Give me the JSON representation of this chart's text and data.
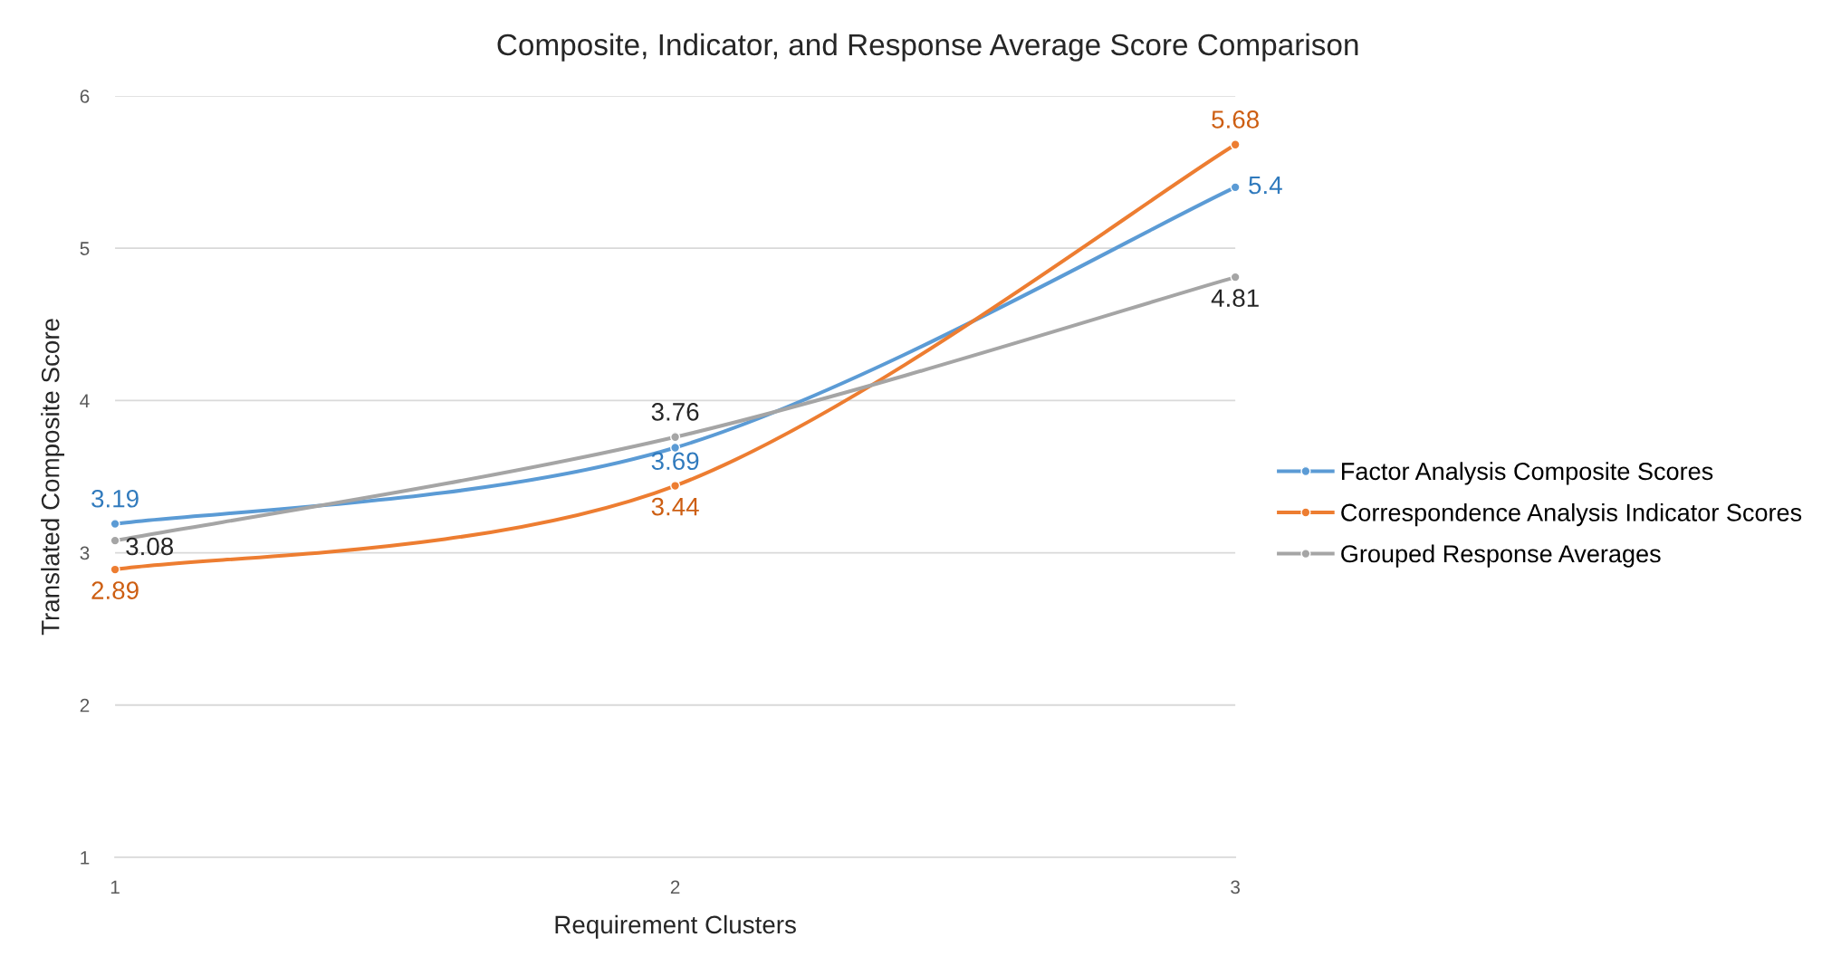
{
  "chart_data": {
    "type": "line",
    "title": "Composite, Indicator, and Response Average Score Comparison",
    "xlabel": "Requirement Clusters",
    "ylabel": "Translated Composite Score",
    "categories": [
      "1",
      "2",
      "3"
    ],
    "series": [
      {
        "name": "Factor Analysis Composite Scores",
        "color": "#5b9bd5",
        "values": [
          3.19,
          3.69,
          5.4
        ]
      },
      {
        "name": "Correspondence Analysis Indicator Scores",
        "color": "#ed7d31",
        "values": [
          2.89,
          3.44,
          5.68
        ]
      },
      {
        "name": "Grouped Response Averages",
        "color": "#a5a5a5",
        "values": [
          3.08,
          3.76,
          4.81
        ]
      }
    ],
    "ylim": [
      1,
      6
    ],
    "yticks": [
      1,
      2,
      3,
      4,
      5,
      6
    ],
    "grid": "y",
    "legend": "right",
    "marker": "circle",
    "line_style": "solid",
    "data_labels": true
  }
}
